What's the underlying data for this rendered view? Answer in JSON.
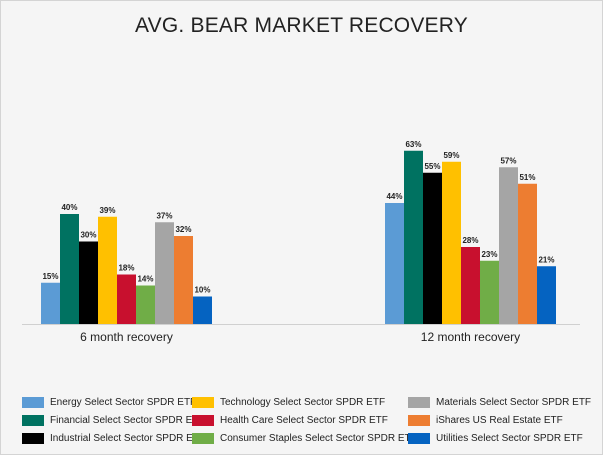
{
  "chart_data": {
    "type": "bar",
    "title": "AVG. BEAR MARKET RECOVERY",
    "categories": [
      "6 month recovery",
      "12 month recovery"
    ],
    "xlabel": "",
    "ylabel": "",
    "ylim": [
      0,
      70
    ],
    "grid": false,
    "legend_position": "bottom",
    "series": [
      {
        "name": "Energy Select Sector SPDR ETF",
        "color": "#5b9bd5",
        "values": [
          15,
          44
        ],
        "labels": [
          "15%",
          "44%"
        ]
      },
      {
        "name": "Financial Select Sector SPDR ETF",
        "color": "#007261",
        "values": [
          40,
          63
        ],
        "labels": [
          "40%",
          "63%"
        ]
      },
      {
        "name": "Industrial Select Sector SPDR ETF",
        "color": "#000000",
        "values": [
          30,
          55
        ],
        "labels": [
          "30%",
          "55%"
        ]
      },
      {
        "name": "Technology Select Sector SPDR ETF",
        "color": "#ffc000",
        "values": [
          39,
          59
        ],
        "labels": [
          "39%",
          "59%"
        ]
      },
      {
        "name": "Health Care Select Sector SPDR ETF",
        "color": "#c8102e",
        "values": [
          18,
          28
        ],
        "labels": [
          "18%",
          "28%"
        ]
      },
      {
        "name": "Consumer Staples Select Sector SPDR ETF",
        "color": "#70ad47",
        "values": [
          14,
          23
        ],
        "labels": [
          "14%",
          "23%"
        ]
      },
      {
        "name": "Materials Select Sector SPDR ETF",
        "color": "#a5a5a5",
        "values": [
          37,
          57
        ],
        "labels": [
          "37%",
          "57%"
        ]
      },
      {
        "name": "iShares US Real Estate ETF",
        "color": "#ed7d31",
        "values": [
          32,
          51
        ],
        "labels": [
          "32%",
          "51%"
        ]
      },
      {
        "name": "Utilities Select Sector SPDR ETF",
        "color": "#0563c1",
        "values": [
          10,
          21
        ],
        "labels": [
          "10%",
          "21%"
        ]
      }
    ]
  }
}
